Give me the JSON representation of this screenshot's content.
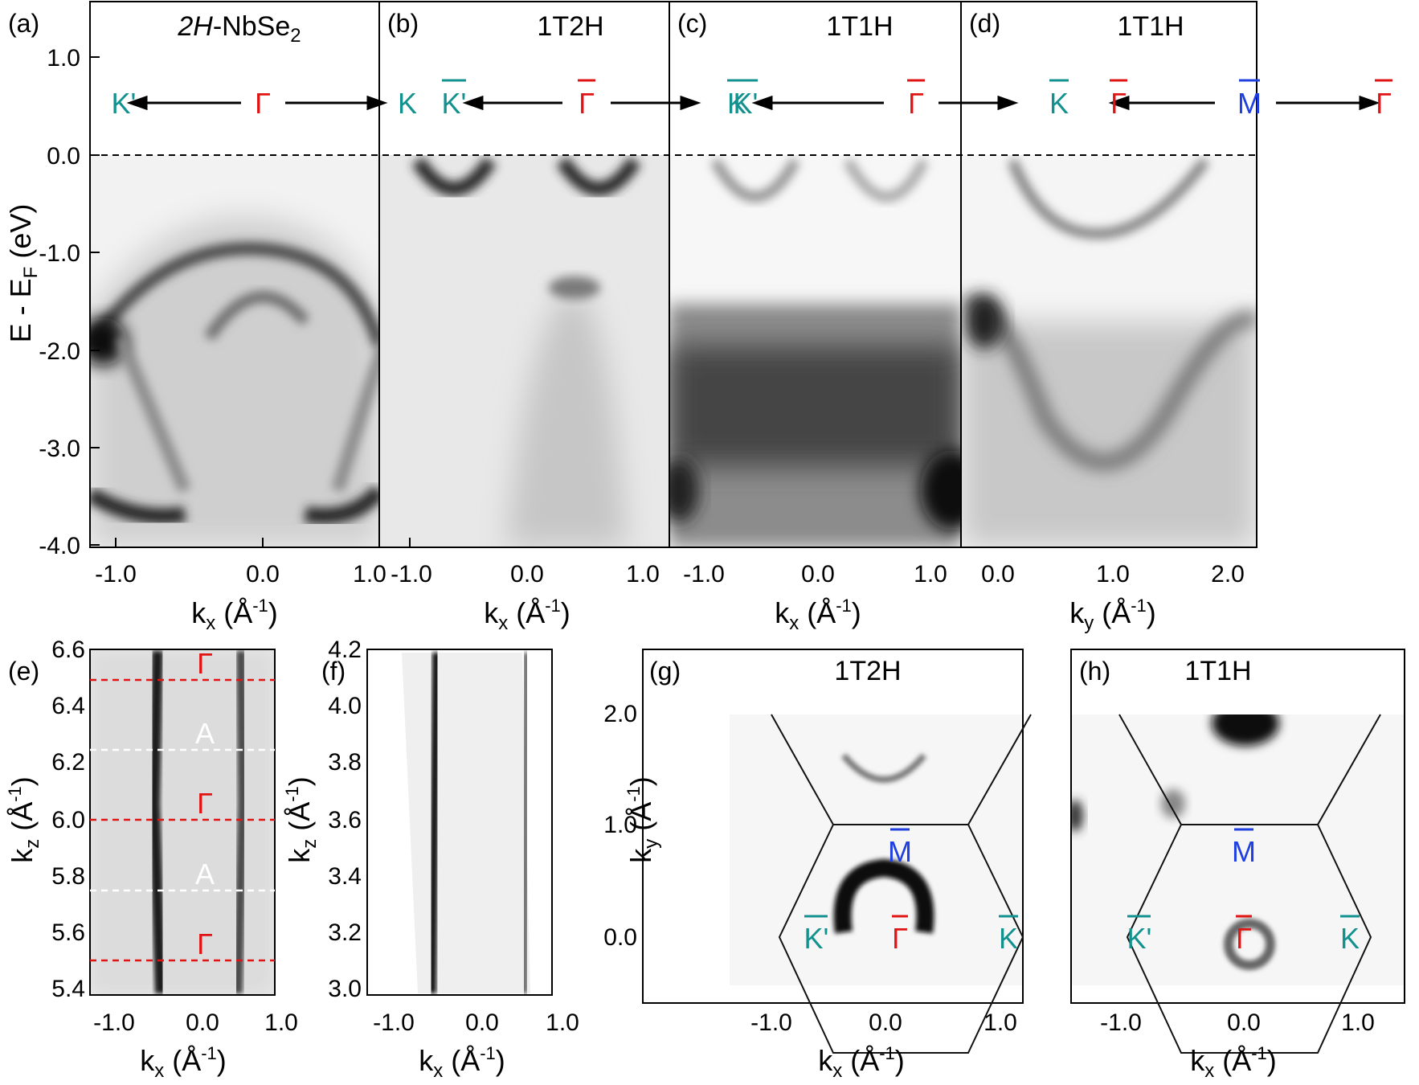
{
  "colors": {
    "gamma": "#e11414",
    "k_point": "#12918f",
    "m_point": "#1f3fe0",
    "a_point": "#ffffff",
    "axis": "#000000"
  },
  "panels": {
    "a": {
      "label": "(a)",
      "title": "2H-NbSe",
      "title_italic": "2H",
      "title_rest": "-NbSe",
      "title_sub": "2",
      "path": {
        "left": "K'",
        "center": "Γ",
        "right": "K"
      },
      "xaxis": {
        "label": "k",
        "sub": "x",
        "unit": " (Å",
        "sup": "-1",
        "close": ")",
        "ticks": [
          "-1.0",
          "0.0",
          "1.0"
        ]
      },
      "yaxis": {
        "label": "E - E",
        "sub": "F",
        "unit": " (eV)",
        "ticks": [
          "1.0",
          "0.0",
          "-1.0",
          "-2.0",
          "-3.0",
          "-4.0"
        ]
      }
    },
    "b": {
      "label": "(b)",
      "title": "1T2H",
      "path": {
        "left": "K'",
        "center": "Γ",
        "right": "K"
      },
      "xaxis": {
        "label": "k",
        "sub": "x",
        "unit": " (Å",
        "sup": "-1",
        "close": ")",
        "ticks": [
          "-1.0",
          "0.0",
          "1.0"
        ]
      }
    },
    "c": {
      "label": "(c)",
      "title": "1T1H",
      "path": {
        "left": "K'",
        "center": "Γ",
        "right": "K"
      },
      "xaxis": {
        "label": "k",
        "sub": "x",
        "unit": " (Å",
        "sup": "-1",
        "close": ")",
        "ticks": [
          "-1.0",
          "0.0",
          "1.0"
        ]
      }
    },
    "d": {
      "label": "(d)",
      "title": "1T1H",
      "path": {
        "left": "Γ",
        "center": "M",
        "right": "Γ"
      },
      "xaxis": {
        "label": "k",
        "sub": "y",
        "unit": " (Å",
        "sup": "-1",
        "close": ")",
        "ticks": [
          "0.0",
          "1.0",
          "2.0"
        ]
      }
    },
    "e": {
      "label": "(e)",
      "points": [
        "Γ",
        "A",
        "Γ",
        "A",
        "Γ"
      ],
      "xaxis": {
        "label": "k",
        "sub": "x",
        "unit": " (Å",
        "sup": "-1",
        "close": ")",
        "ticks": [
          "-1.0",
          "0.0",
          "1.0"
        ]
      },
      "yaxis": {
        "label": "k",
        "sub": "z",
        "unit": " (Å",
        "sup": "-1",
        "close": ")",
        "ticks": [
          "6.6",
          "6.4",
          "6.2",
          "6.0",
          "5.8",
          "5.6",
          "5.4"
        ]
      }
    },
    "f": {
      "label": "(f)",
      "xaxis": {
        "label": "k",
        "sub": "x",
        "unit": " (Å",
        "sup": "-1",
        "close": ")",
        "ticks": [
          "-1.0",
          "0.0",
          "1.0"
        ]
      },
      "yaxis": {
        "label": "k",
        "sub": "z",
        "unit": " (Å",
        "sup": "-1",
        "close": ")",
        "ticks": [
          "4.2",
          "4.0",
          "3.8",
          "3.6",
          "3.4",
          "3.2",
          "3.0"
        ]
      }
    },
    "g": {
      "label": "(g)",
      "title": "1T2H",
      "points": {
        "m": "M",
        "gamma": "Γ",
        "k_left": "K'",
        "k_right": "K"
      },
      "xaxis": {
        "label": "k",
        "sub": "x",
        "unit": " (Å",
        "sup": "-1",
        "close": ")",
        "ticks": [
          "-1.0",
          "0.0",
          "1.0"
        ]
      },
      "yaxis": {
        "label": "k",
        "sub": "y",
        "unit": " (Å",
        "sup": "-1",
        "close": ")",
        "ticks": [
          "2.0",
          "1.0",
          "0.0"
        ]
      }
    },
    "h": {
      "label": "(h)",
      "title": "1T1H",
      "points": {
        "m": "M",
        "gamma": "Γ",
        "k_left": "K'",
        "k_right": "K"
      },
      "xaxis": {
        "label": "k",
        "sub": "x",
        "unit": " (Å",
        "sup": "-1",
        "close": ")",
        "ticks": [
          "-1.0",
          "0.0",
          "1.0"
        ]
      }
    }
  },
  "chart_data": [
    {
      "type": "heatmap",
      "panel": "a",
      "xlabel": "kx (Å-1)",
      "ylabel": "E - EF (eV)",
      "xlim": [
        -1.3,
        1.3
      ],
      "ylim": [
        -4.0,
        1.5
      ],
      "fermi_level": 0.0
    },
    {
      "type": "heatmap",
      "panel": "b",
      "xlabel": "kx (Å-1)",
      "xlim": [
        -1.3,
        1.3
      ],
      "ylim": [
        -4.0,
        1.5
      ],
      "fermi_level": 0.0
    },
    {
      "type": "heatmap",
      "panel": "c",
      "xlabel": "kx (Å-1)",
      "xlim": [
        -1.3,
        1.3
      ],
      "ylim": [
        -4.0,
        1.5
      ],
      "fermi_level": 0.0
    },
    {
      "type": "heatmap",
      "panel": "d",
      "xlabel": "ky (Å-1)",
      "xlim": [
        -0.15,
        2.3
      ],
      "ylim": [
        -4.0,
        1.5
      ],
      "fermi_level": 0.0
    },
    {
      "type": "heatmap",
      "panel": "e",
      "xlabel": "kx (Å-1)",
      "ylabel": "kz (Å-1)",
      "xlim": [
        -1.3,
        1.3
      ],
      "ylim": [
        5.38,
        6.62
      ],
      "gamma_lines": [
        6.5,
        6.0,
        5.5
      ],
      "a_lines": [
        6.25,
        5.75
      ]
    },
    {
      "type": "heatmap",
      "panel": "f",
      "xlabel": "kx (Å-1)",
      "ylabel": "kz (Å-1)",
      "xlim": [
        -1.3,
        1.3
      ],
      "ylim": [
        3.0,
        4.22
      ]
    },
    {
      "type": "heatmap",
      "panel": "g",
      "xlabel": "kx (Å-1)",
      "ylabel": "ky (Å-1)",
      "xlim": [
        -1.6,
        1.6
      ],
      "ylim": [
        -0.5,
        2.4
      ]
    },
    {
      "type": "heatmap",
      "panel": "h",
      "xlabel": "kx (Å-1)",
      "xlim": [
        -1.6,
        1.6
      ],
      "ylim": [
        -0.5,
        2.4
      ]
    }
  ]
}
